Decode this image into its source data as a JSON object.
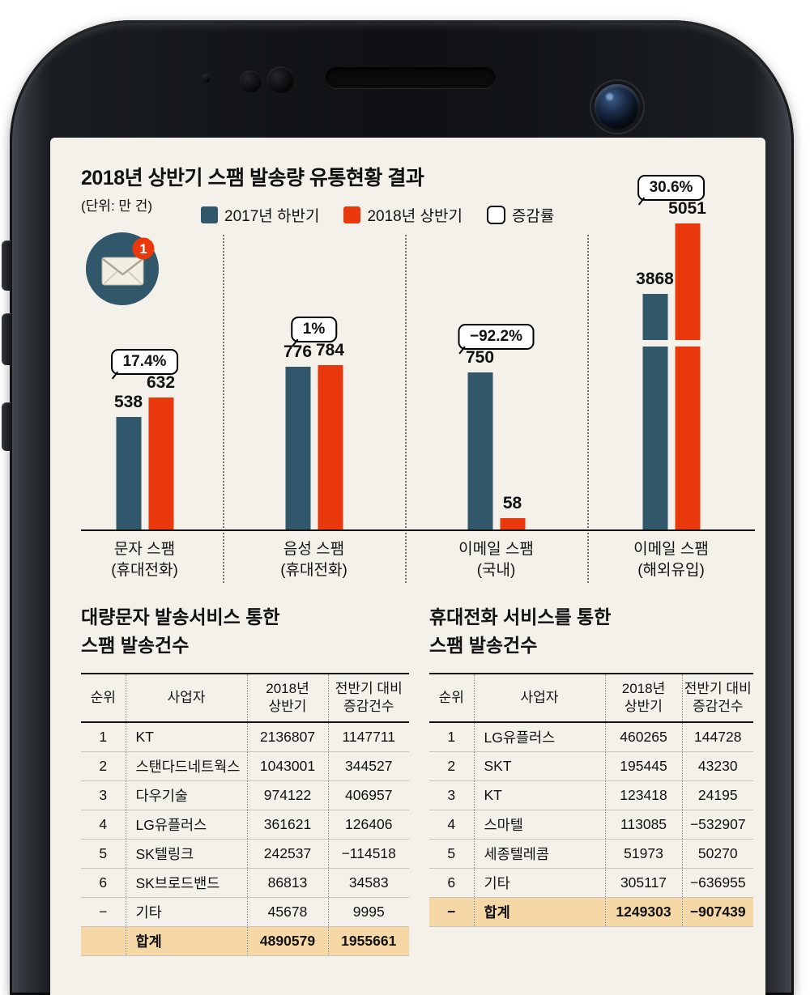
{
  "chart": {
    "title": "2018년 상반기 스팸 발송량 유통현황 결과",
    "unit": "(단위: 만 건)",
    "badge": "1",
    "legend": [
      {
        "label": "2017년 하반기",
        "color": "#30586a"
      },
      {
        "label": "2018년 상반기",
        "color": "#e8380c"
      },
      {
        "label": "증감률",
        "color": "#ffffff"
      }
    ]
  },
  "chart_data": {
    "type": "bar",
    "title": "2018년 상반기 스팸 발송량 유통현황 결과",
    "unit": "만 건",
    "categories": [
      "문자 스팸\n(휴대전화)",
      "음성 스팸\n(휴대전화)",
      "이메일 스팸\n(국내)",
      "이메일 스팸\n(해외유입)"
    ],
    "series": [
      {
        "name": "2017년 하반기",
        "color": "#30586a",
        "values": [
          538,
          776,
          750,
          3868
        ]
      },
      {
        "name": "2018년 상반기",
        "color": "#e8380c",
        "values": [
          632,
          784,
          58,
          5051
        ]
      }
    ],
    "change_rates": [
      "17.4%",
      "1%",
      "−92.2%",
      "30.6%"
    ],
    "axis_break_group": 3,
    "ylim": [
      0,
      5200
    ],
    "grid": false,
    "legend_position": "top"
  },
  "tables": [
    {
      "title": "대량문자 발송서비스 통한\n스팸 발송건수",
      "headers": [
        "순위",
        "사업자",
        "2018년\n상반기",
        "전반기 대비\n증감건수"
      ],
      "rows": [
        [
          "1",
          "KT",
          "2136807",
          "1147711"
        ],
        [
          "2",
          "스탠다드네트웍스",
          "1043001",
          "344527"
        ],
        [
          "3",
          "다우기술",
          "974122",
          "406957"
        ],
        [
          "4",
          "LG유플러스",
          "361621",
          "126406"
        ],
        [
          "5",
          "SK텔링크",
          "242537",
          "−114518"
        ],
        [
          "6",
          "SK브로드밴드",
          "86813",
          "34583"
        ],
        [
          "−",
          "기타",
          "45678",
          "9995"
        ]
      ],
      "total_row": [
        "",
        "합계",
        "4890579",
        "1955661"
      ]
    },
    {
      "title": "휴대전화 서비스를 통한\n스팸 발송건수",
      "headers": [
        "순위",
        "사업자",
        "2018년\n상반기",
        "전반기 대비\n증감건수"
      ],
      "rows": [
        [
          "1",
          "LG유플러스",
          "460265",
          "144728"
        ],
        [
          "2",
          "SKT",
          "195445",
          "43230"
        ],
        [
          "3",
          "KT",
          "123418",
          "24195"
        ],
        [
          "4",
          "스마텔",
          "113085",
          "−532907"
        ],
        [
          "5",
          "세종텔레콤",
          "51973",
          "50270"
        ],
        [
          "6",
          "기타",
          "305117",
          "−636955"
        ]
      ],
      "total_row": [
        "−",
        "합계",
        "1249303",
        "−907439"
      ]
    }
  ],
  "colors": {
    "series_2017": "#30586a",
    "series_2018": "#e8380c",
    "screen_bg": "#f3f1ea",
    "total_row_bg": "#f6d8a6"
  }
}
